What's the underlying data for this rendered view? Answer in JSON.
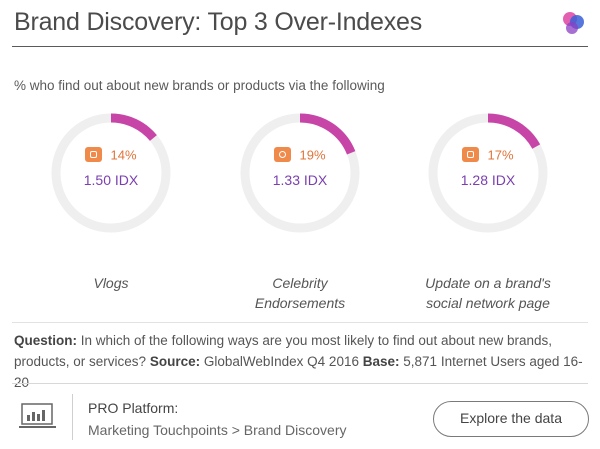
{
  "header": {
    "title": "Brand Discovery: Top 3 Over-Indexes",
    "logo_icon": "globalwebindex-logo",
    "colors": {
      "pink": "#e04fa8",
      "blue": "#3b5fd6",
      "purple": "#8b3fc4"
    }
  },
  "chart_data": {
    "type": "donut",
    "title": "Brand Discovery: Top 3 Over-Indexes",
    "subtitle": "% who find out about new brands or products via the following",
    "categories": [
      "Vlogs",
      "Celebrity Endorsements",
      "Update on a brand's social network page"
    ],
    "items": [
      {
        "label_lines": [
          "Vlogs"
        ],
        "percent_value": 14,
        "percent_label": "14%",
        "idx_value": 1.5,
        "idx_label": "1.50 IDX",
        "icon": "video-icon"
      },
      {
        "label_lines": [
          "Celebrity",
          "Endorsements"
        ],
        "percent_value": 19,
        "percent_label": "19%",
        "idx_value": 1.33,
        "idx_label": "1.33 IDX",
        "icon": "star-icon"
      },
      {
        "label_lines": [
          "Update on a brand's",
          "social network page"
        ],
        "percent_value": 17,
        "percent_label": "17%",
        "idx_value": 1.28,
        "idx_label": "1.28 IDX",
        "icon": "social-icon"
      }
    ],
    "arc_color": "#c845a8",
    "track_color": "#efefef",
    "percent_color": "#e0743a",
    "idx_color": "#7a3fb0",
    "icon_color": "#f08a4b"
  },
  "notes": {
    "question_label": "Question:",
    "question_text": "In which of the following ways are you most likely to find out about new brands, products, or services?",
    "source_label": "Source:",
    "source_text": "GlobalWebIndex Q4 2016",
    "base_label": "Base:",
    "base_text": "5,871 Internet Users aged 16-20"
  },
  "footer": {
    "platform_title": "PRO Platform:",
    "platform_path": "Marketing Touchpoints > Brand Discovery",
    "platform_icon": "laptop-chart-icon",
    "explore_label": "Explore the data"
  }
}
